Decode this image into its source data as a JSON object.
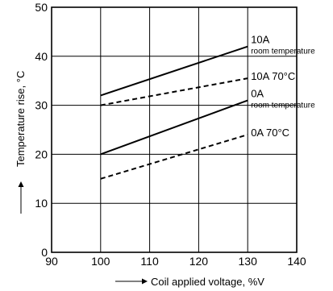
{
  "chart_data": {
    "type": "line",
    "xlabel": "Coil applied voltage, %V",
    "ylabel": "Temperature rise, °C",
    "xlim": [
      90,
      140
    ],
    "ylim": [
      0,
      50
    ],
    "xticks": [
      90,
      100,
      110,
      120,
      130,
      140
    ],
    "yticks": [
      0,
      10,
      20,
      30,
      40,
      50
    ],
    "grid": true,
    "series": [
      {
        "name": "10A room temperature",
        "line1": "10A",
        "line2": "room temperature",
        "style": "solid",
        "x": [
          100,
          130
        ],
        "y": [
          32,
          42
        ]
      },
      {
        "name": "10A 70°C",
        "line1": "10A 70°C",
        "line2": "",
        "style": "dashed",
        "x": [
          100,
          130
        ],
        "y": [
          30,
          35.5
        ]
      },
      {
        "name": "0A room temperature",
        "line1": "0A",
        "line2": "room temperature",
        "style": "solid",
        "x": [
          100,
          130
        ],
        "y": [
          20,
          31
        ]
      },
      {
        "name": "0A 70°C",
        "line1": "0A 70°C",
        "line2": "",
        "style": "dashed",
        "x": [
          100,
          130
        ],
        "y": [
          15,
          24
        ]
      }
    ]
  }
}
